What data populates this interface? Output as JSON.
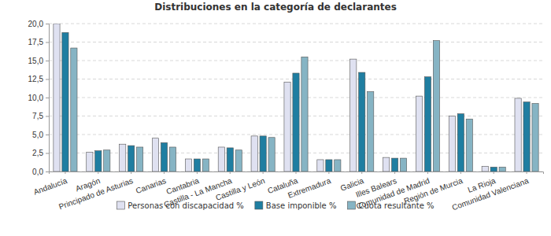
{
  "chart_data": {
    "type": "bar",
    "title": "Distribuciones en la categoría de declarantes",
    "categories": [
      "Andalucía",
      "Aragón",
      "Principado de Asturias",
      "Canarias",
      "Cantabria",
      "Castilla - La Mancha",
      "Castilla y León",
      "Cataluña",
      "Extremadura",
      "Galicia",
      "Illes Balears",
      "Comunidad de Madrid",
      "Región de Murcia",
      "La Rioja",
      "Comunidad Valenciana"
    ],
    "series": [
      {
        "name": "Personas con discapacidad %",
        "color": "#dfe1f1",
        "values": [
          20.0,
          2.6,
          3.7,
          4.5,
          1.7,
          3.3,
          4.8,
          12.1,
          1.6,
          15.2,
          1.9,
          10.2,
          7.5,
          0.7,
          9.9
        ]
      },
      {
        "name": "Base imponible %",
        "color": "#1f7ea1",
        "values": [
          18.8,
          2.8,
          3.5,
          3.9,
          1.7,
          3.2,
          4.8,
          13.3,
          1.6,
          13.4,
          1.8,
          12.8,
          7.8,
          0.6,
          9.4
        ]
      },
      {
        "name": "Cuota resultante %",
        "color": "#86b4c4",
        "values": [
          16.7,
          2.9,
          3.3,
          3.3,
          1.7,
          2.9,
          4.6,
          15.5,
          1.6,
          10.8,
          1.8,
          17.7,
          7.1,
          0.6,
          9.2
        ]
      }
    ],
    "ylim": [
      0,
      20
    ],
    "yticks": [
      {
        "value": 0,
        "label": "0,0"
      },
      {
        "value": 2.5,
        "label": "2,5"
      },
      {
        "value": 5,
        "label": "5,0"
      },
      {
        "value": 7.5,
        "label": "7,5"
      },
      {
        "value": 10,
        "label": "10,0"
      },
      {
        "value": 12.5,
        "label": "12,5"
      },
      {
        "value": 15,
        "label": "15,0"
      },
      {
        "value": 17.5,
        "label": "17,5"
      },
      {
        "value": 20,
        "label": "20,0"
      }
    ],
    "grid": true,
    "legend": "bottom"
  }
}
